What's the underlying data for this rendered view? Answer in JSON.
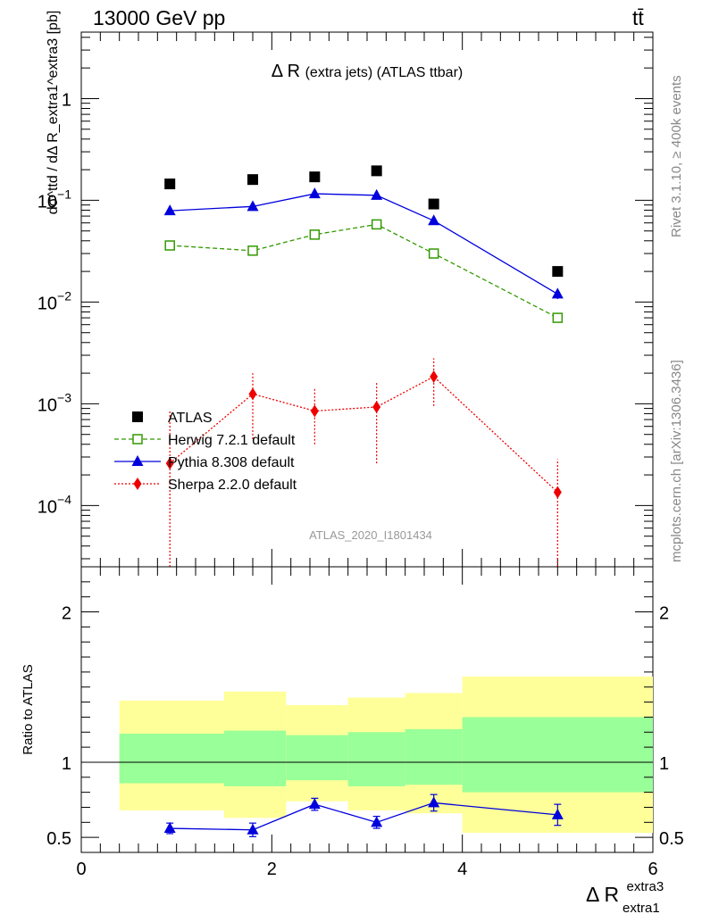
{
  "header": {
    "energy_label": "13000 GeV pp",
    "process_label": "tt̄"
  },
  "side_labels": {
    "rivet": "Rivet 3.1.10, ≥ 400k events",
    "mcplots": "mcplots.cern.ch [arXiv:1306.3436]"
  },
  "chart_data": [
    {
      "type": "scatter",
      "title": "Δ R (extra jets) (ATLAS ttbar)",
      "title_main": "Δ R",
      "title_rest": "(extra jets) (ATLAS ttbar)",
      "analysis_label": "ATLAS_2020_I1801434",
      "ylabel": "dσ^ttd / dΔ R_extra1^extra3 [pb]",
      "y_scale": "log",
      "xlim": [
        0,
        6
      ],
      "ylim": [
        2.5e-05,
        4.5
      ],
      "y_ticks": [
        {
          "value": 0.0001,
          "base": "10",
          "exp": "−4"
        },
        {
          "value": 0.001,
          "base": "10",
          "exp": "−3"
        },
        {
          "value": 0.01,
          "base": "10",
          "exp": "−2"
        },
        {
          "value": 0.1,
          "base": "10",
          "exp": "−1"
        },
        {
          "value": 1,
          "base": "1",
          "exp": ""
        }
      ],
      "legend_position": "bottom-left",
      "series": [
        {
          "name": "ATLAS",
          "color": "#000000",
          "marker": "square",
          "style": "none",
          "x": [
            0.93,
            1.8,
            2.45,
            3.1,
            3.7,
            5.0
          ],
          "y": [
            0.145,
            0.16,
            0.17,
            0.195,
            0.092,
            0.02
          ],
          "err": [
            0,
            0,
            0,
            0,
            0,
            0
          ]
        },
        {
          "name": "Herwig 7.2.1 default",
          "color": "#339900",
          "marker": "open-square",
          "style": "dashed",
          "x": [
            0.93,
            1.8,
            2.45,
            3.1,
            3.7,
            5.0
          ],
          "y": [
            0.036,
            0.032,
            0.046,
            0.058,
            0.03,
            0.007
          ],
          "err": [
            0,
            0,
            0,
            0,
            0,
            0
          ]
        },
        {
          "name": "Pythia 8.308 default",
          "color": "#0000dd",
          "marker": "triangle",
          "style": "solid",
          "x": [
            0.93,
            1.8,
            2.45,
            3.1,
            3.7,
            5.0
          ],
          "y": [
            0.079,
            0.087,
            0.116,
            0.112,
            0.063,
            0.012
          ],
          "err": [
            0.002,
            0.002,
            0.003,
            0.003,
            0.002,
            0.0013
          ]
        },
        {
          "name": "Sherpa 2.2.0 default",
          "color": "#ee0000",
          "marker": "diamond",
          "style": "dotted",
          "x": [
            0.93,
            1.8,
            2.45,
            3.1,
            3.7,
            5.0
          ],
          "y": [
            0.00026,
            0.00125,
            0.00085,
            0.00093,
            0.00185,
            0.000135
          ],
          "err_lo": [
            0.00024,
            0.0008,
            0.00045,
            0.00067,
            0.0009,
            0.00012
          ],
          "err_hi": [
            0.0006,
            0.00075,
            0.00055,
            0.00067,
            0.00095,
            0.00015
          ]
        }
      ]
    },
    {
      "type": "scatter",
      "ylabel": "Ratio to ATLAS",
      "xlabel": "Δ R_extra1^extra3",
      "xlabel_main": "Δ R",
      "xlabel_sup": "extra3",
      "xlabel_sub": "extra1",
      "xlim": [
        0,
        6
      ],
      "ylim": [
        0.4,
        2.3
      ],
      "x_ticks": [
        "0",
        "2",
        "4",
        "6"
      ],
      "y_ticks": [
        "0.5",
        "1",
        "2"
      ],
      "reference_line": 1,
      "bands": [
        {
          "x0": 0.4,
          "x1": 1.5,
          "outer": [
            0.68,
            1.41
          ],
          "inner": [
            0.86,
            1.19
          ]
        },
        {
          "x0": 1.5,
          "x1": 2.15,
          "outer": [
            0.63,
            1.47
          ],
          "inner": [
            0.84,
            1.21
          ]
        },
        {
          "x0": 2.15,
          "x1": 2.8,
          "outer": [
            0.74,
            1.38
          ],
          "inner": [
            0.88,
            1.18
          ]
        },
        {
          "x0": 2.8,
          "x1": 3.4,
          "outer": [
            0.68,
            1.43
          ],
          "inner": [
            0.84,
            1.2
          ]
        },
        {
          "x0": 3.4,
          "x1": 4.0,
          "outer": [
            0.66,
            1.46
          ],
          "inner": [
            0.85,
            1.22
          ]
        },
        {
          "x0": 4.0,
          "x1": 6.0,
          "outer": [
            0.53,
            1.57
          ],
          "inner": [
            0.8,
            1.3
          ]
        }
      ],
      "band_colors": {
        "outer": "#ffff99",
        "inner": "#99ff99"
      },
      "series": [
        {
          "name": "Pythia 8.308 default",
          "color": "#0000dd",
          "marker": "triangle",
          "style": "solid",
          "x": [
            0.93,
            1.8,
            2.45,
            3.1,
            3.7,
            5.0
          ],
          "y": [
            0.56,
            0.55,
            0.72,
            0.6,
            0.73,
            0.65
          ],
          "err": [
            0.035,
            0.045,
            0.04,
            0.04,
            0.055,
            0.07
          ]
        }
      ]
    }
  ]
}
